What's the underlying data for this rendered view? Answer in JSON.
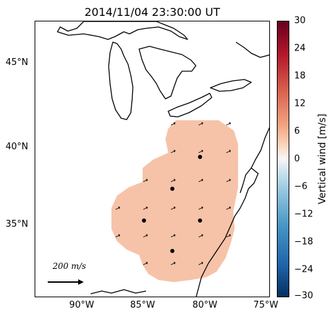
{
  "title": "2014/11/04 23:30:00 UT",
  "lat_ticks": [
    "45°N",
    "40°N",
    "35°N"
  ],
  "lon_ticks": [
    "90°W",
    "85°W",
    "80°W",
    "75°W"
  ],
  "colorbar": {
    "label": "Vertical wind [m/s]",
    "ticks": [
      "30",
      "24",
      "18",
      "12",
      "6",
      "0",
      "−6",
      "−12",
      "−18",
      "−24",
      "−30"
    ],
    "range": [
      -30,
      30
    ],
    "colors": {
      "max": "#67001f",
      "mid": "#f7f7f7",
      "min": "#053061"
    }
  },
  "field": {
    "value_approx": 6,
    "fill_color": "#f6c3a9"
  },
  "sites_color": "#000000",
  "scale_vector": {
    "label": "200 m/s"
  }
}
